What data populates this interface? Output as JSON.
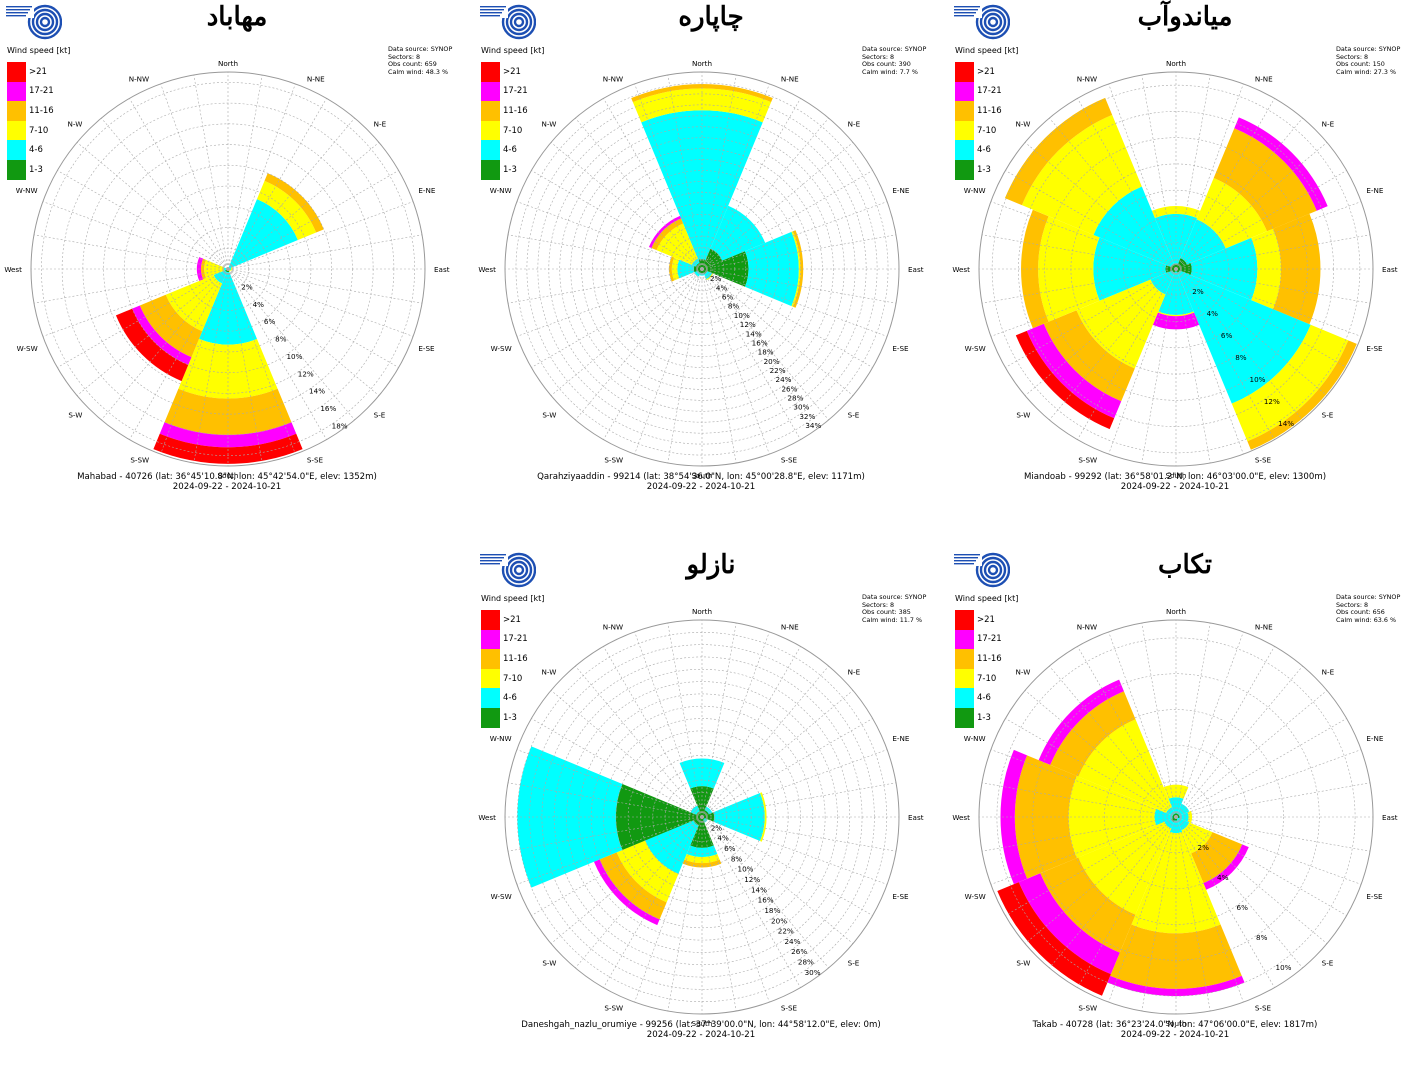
{
  "colors": {
    "bins": [
      "#119911",
      "#00ffff",
      "#ffff00",
      "#ffc000",
      "#ff00ff",
      "#ff0000"
    ],
    "logo": "#1d4fb3"
  },
  "chart_data": [
    {
      "type": "wind-rose",
      "title": "مهاباد",
      "legend_title": "Wind speed [kt]",
      "legend": [
        ">21",
        "17-21",
        "11-16",
        "7-10",
        "4-6",
        "1-3"
      ],
      "directions": [
        "North",
        "N-NE",
        "N-E",
        "E-NE",
        "East",
        "E-SE",
        "S-E",
        "S-SE",
        "South",
        "S-SW",
        "S-W",
        "W-SW",
        "West",
        "W-NW",
        "N-W",
        "N-NW"
      ],
      "meta": [
        "Data source: SYNOP",
        "Sectors: 8",
        "Obs count: 659",
        "Calm wind: 48.3 %"
      ],
      "percent_ticks": [
        "2%",
        "4%",
        "6%",
        "8%",
        "10%",
        "12%",
        "14%",
        "16%",
        "18%"
      ],
      "rmax": 19,
      "station": "Mahabad - 40726 (lat: 36°45'10.8\"N, lon: 45°42'54.0\"E, elev: 1352m)",
      "period": "2024-09-22 - 2024-10-21",
      "sectors": [
        {
          "dir": "North",
          "cum": [
            0,
            0,
            0,
            0,
            0,
            0
          ]
        },
        {
          "dir": "N-E",
          "cum": [
            0,
            7.3,
            9.2,
            10,
            10,
            10
          ]
        },
        {
          "dir": "East",
          "cum": [
            0.2,
            0.3,
            0.4,
            0.4,
            0.4,
            0.4
          ]
        },
        {
          "dir": "S-E",
          "cum": [
            0,
            0.2,
            0.3,
            0.3,
            0.3,
            0.3
          ]
        },
        {
          "dir": "South",
          "cum": [
            0.3,
            7.3,
            12.5,
            16.0,
            17.2,
            18.8
          ]
        },
        {
          "dir": "S-W",
          "cum": [
            0.3,
            1.5,
            6.5,
            9.2,
            10.0,
            11.7
          ]
        },
        {
          "dir": "West",
          "cum": [
            0.2,
            0.4,
            2.3,
            2.6,
            3.0,
            3.0
          ]
        },
        {
          "dir": "N-W",
          "cum": [
            0,
            0,
            0,
            0,
            0,
            0
          ]
        }
      ]
    },
    {
      "type": "wind-rose",
      "title": "چاپاره",
      "legend_title": "Wind speed [kt]",
      "legend": [
        ">21",
        "17-21",
        "11-16",
        "7-10",
        "4-6",
        "1-3"
      ],
      "directions": [
        "North",
        "N-NE",
        "N-E",
        "E-NE",
        "East",
        "E-SE",
        "S-E",
        "S-SE",
        "South",
        "S-SW",
        "S-W",
        "W-SW",
        "West",
        "W-NW",
        "N-W",
        "N-NW"
      ],
      "meta": [
        "Data source: SYNOP",
        "Sectors: 8",
        "Obs count: 390",
        "Calm wind: 7.7 %"
      ],
      "percent_ticks": [
        "2%",
        "4%",
        "6%",
        "8%",
        "10%",
        "12%",
        "14%",
        "16%",
        "18%",
        "20%",
        "22%",
        "24%",
        "26%",
        "28%",
        "30%",
        "32%",
        "34%"
      ],
      "rmax": 36,
      "station": "Qarahziyaaddin - 99214 (lat: 38°54'36.0\"N, lon: 45°00'28.8\"E, elev: 1171m)",
      "period": "2024-09-22 - 2024-10-21",
      "sectors": [
        {
          "dir": "North",
          "cum": [
            1.8,
            29.0,
            33.0,
            33.8,
            33.8,
            33.8
          ]
        },
        {
          "dir": "N-E",
          "cum": [
            4.0,
            12.5,
            12.5,
            12.5,
            12.5,
            12.5
          ]
        },
        {
          "dir": "East",
          "cum": [
            8.5,
            17.7,
            18.0,
            18.5,
            18.5,
            18.5
          ]
        },
        {
          "dir": "S-E",
          "cum": [
            1.0,
            2.0,
            2.2,
            2.2,
            2.2,
            2.2
          ]
        },
        {
          "dir": "South",
          "cum": [
            0.8,
            1.2,
            1.2,
            1.2,
            1.2,
            1.2
          ]
        },
        {
          "dir": "S-W",
          "cum": [
            0.8,
            1.5,
            1.5,
            1.5,
            1.5,
            1.5
          ]
        },
        {
          "dir": "West",
          "cum": [
            1.5,
            4.5,
            5.5,
            6.0,
            6.0,
            6.0
          ]
        },
        {
          "dir": "N-W",
          "cum": [
            1.2,
            2.0,
            9.0,
            10.0,
            10.5,
            10.5
          ]
        }
      ]
    },
    {
      "type": "wind-rose",
      "title": "میاندوآب",
      "legend_title": "Wind speed [kt]",
      "legend": [
        ">21",
        "17-21",
        "11-16",
        "7-10",
        "4-6",
        "1-3"
      ],
      "directions": [
        "North",
        "N-NE",
        "N-E",
        "E-NE",
        "East",
        "E-SE",
        "S-E",
        "S-SE",
        "South",
        "S-SW",
        "S-W",
        "W-SW",
        "West",
        "W-NW",
        "N-W",
        "N-NW"
      ],
      "meta": [
        "Data source: SYNOP",
        "Sectors: 8",
        "Obs count: 150",
        "Calm wind: 27.3 %"
      ],
      "percent_ticks": [
        "2%",
        "4%",
        "6%",
        "8%",
        "10%",
        "12%",
        "14%"
      ],
      "rmax": 15,
      "station": "Miandoab - 99292 (lat: 36°58'01.2\"N, lon: 46°03'00.0\"E, elev: 1300m)",
      "period": "2024-09-22 - 2024-10-21",
      "sectors": [
        {
          "dir": "North",
          "cum": [
            0.4,
            4.2,
            4.8,
            4.8,
            4.8,
            4.8
          ]
        },
        {
          "dir": "N-E",
          "cum": [
            0.9,
            4.1,
            7.5,
            11.6,
            12.5,
            12.5
          ]
        },
        {
          "dir": "East",
          "cum": [
            1.2,
            6.2,
            8.0,
            11.0,
            11.0,
            11.0
          ]
        },
        {
          "dir": "S-E",
          "cum": [
            0.3,
            11.1,
            14.2,
            14.9,
            14.9,
            14.9
          ]
        },
        {
          "dir": "South",
          "cum": [
            0.2,
            3.5,
            3.6,
            3.6,
            4.6,
            4.6
          ]
        },
        {
          "dir": "S-W",
          "cum": [
            0.3,
            2.1,
            8.2,
            10.9,
            12.3,
            13.2
          ]
        },
        {
          "dir": "West",
          "cum": [
            0.8,
            6.3,
            10.5,
            11.8,
            11.8,
            11.8
          ]
        },
        {
          "dir": "N-W",
          "cum": [
            0.4,
            6.8,
            12.7,
            14.1,
            14.1,
            14.1
          ]
        }
      ]
    },
    {
      "type": "wind-rose",
      "title": "نازلو",
      "legend_title": "Wind speed [kt]",
      "legend": [
        ">21",
        "17-21",
        "11-16",
        "7-10",
        "4-6",
        "1-3"
      ],
      "directions": [
        "North",
        "N-NE",
        "N-E",
        "E-NE",
        "East",
        "E-SE",
        "S-E",
        "S-SE",
        "South",
        "S-SW",
        "S-W",
        "W-SW",
        "West",
        "W-NW",
        "N-W",
        "N-NW"
      ],
      "meta": [
        "Data source: SYNOP",
        "Sectors: 8",
        "Obs count: 385",
        "Calm wind: 11.7 %"
      ],
      "percent_ticks": [
        "2%",
        "4%",
        "6%",
        "8%",
        "10%",
        "12%",
        "14%",
        "16%",
        "18%",
        "20%",
        "22%",
        "24%",
        "26%",
        "28%",
        "30%"
      ],
      "rmax": 32,
      "station": "Daneshgah_nazlu_orumiye - 99256 (lat: 37°39'00.0\"N, lon: 44°58'12.0\"E, elev: 0m)",
      "period": "2024-09-22 - 2024-10-21",
      "sectors": [
        {
          "dir": "North",
          "cum": [
            5.0,
            9.5,
            9.5,
            9.5,
            9.5,
            9.5
          ]
        },
        {
          "dir": "N-E",
          "cum": [
            1.2,
            1.8,
            1.8,
            1.8,
            1.8,
            1.8
          ]
        },
        {
          "dir": "East",
          "cum": [
            2.0,
            10.2,
            10.5,
            10.5,
            10.5,
            10.5
          ]
        },
        {
          "dir": "S-E",
          "cum": [
            0.5,
            1.0,
            1.0,
            1.0,
            1.0,
            1.0
          ]
        },
        {
          "dir": "South",
          "cum": [
            5.0,
            6.5,
            7.5,
            8.2,
            8.2,
            8.2
          ]
        },
        {
          "dir": "S-W",
          "cum": [
            1.5,
            10.0,
            15.0,
            18.0,
            19.0,
            19.0
          ]
        },
        {
          "dir": "West",
          "cum": [
            14.0,
            30.0,
            30.0,
            30.0,
            30.0,
            30.0
          ]
        },
        {
          "dir": "N-W",
          "cum": [
            1.0,
            2.0,
            2.0,
            2.0,
            2.0,
            2.0
          ]
        }
      ]
    },
    {
      "type": "wind-rose",
      "title": "تکاب",
      "legend_title": "Wind speed [kt]",
      "legend": [
        ">21",
        "17-21",
        "11-16",
        "7-10",
        "4-6",
        "1-3"
      ],
      "directions": [
        "North",
        "N-NE",
        "N-E",
        "E-NE",
        "East",
        "E-SE",
        "S-E",
        "S-SE",
        "South",
        "S-SW",
        "S-W",
        "W-SW",
        "West",
        "W-NW",
        "N-W",
        "N-NW"
      ],
      "meta": [
        "Data source: SYNOP",
        "Sectors: 8",
        "Obs count: 656",
        "Calm wind: 63.6 %"
      ],
      "percent_ticks": [
        "2%",
        "4%",
        "6%",
        "8%",
        "10%"
      ],
      "rmax": 11,
      "station": "Takab - 40728 (lat: 36°23'24.0\"N, lon: 47°06'00.0\"E, elev: 1817m)",
      "period": "2024-09-22 - 2024-10-21",
      "sectors": [
        {
          "dir": "North",
          "cum": [
            0.2,
            1.1,
            1.8,
            1.8,
            1.8,
            1.8
          ]
        },
        {
          "dir": "N-E",
          "cum": [
            0.2,
            0.8,
            0.8,
            0.8,
            0.8,
            0.8
          ]
        },
        {
          "dir": "East",
          "cum": [
            0.2,
            0.7,
            0.9,
            0.9,
            0.9,
            0.9
          ]
        },
        {
          "dir": "S-E",
          "cum": [
            0.1,
            0.8,
            2.2,
            4.0,
            4.4,
            4.4
          ]
        },
        {
          "dir": "South",
          "cum": [
            0.2,
            0.9,
            6.5,
            9.6,
            10.0,
            10.0
          ]
        },
        {
          "dir": "S-W",
          "cum": [
            0.3,
            0.7,
            5.9,
            8.2,
            9.5,
            10.8
          ]
        },
        {
          "dir": "West",
          "cum": [
            0.2,
            1.2,
            6.0,
            9.0,
            9.8,
            9.8
          ]
        },
        {
          "dir": "N-W",
          "cum": [
            0.2,
            0.6,
            5.9,
            7.6,
            8.3,
            8.3
          ]
        }
      ]
    }
  ]
}
